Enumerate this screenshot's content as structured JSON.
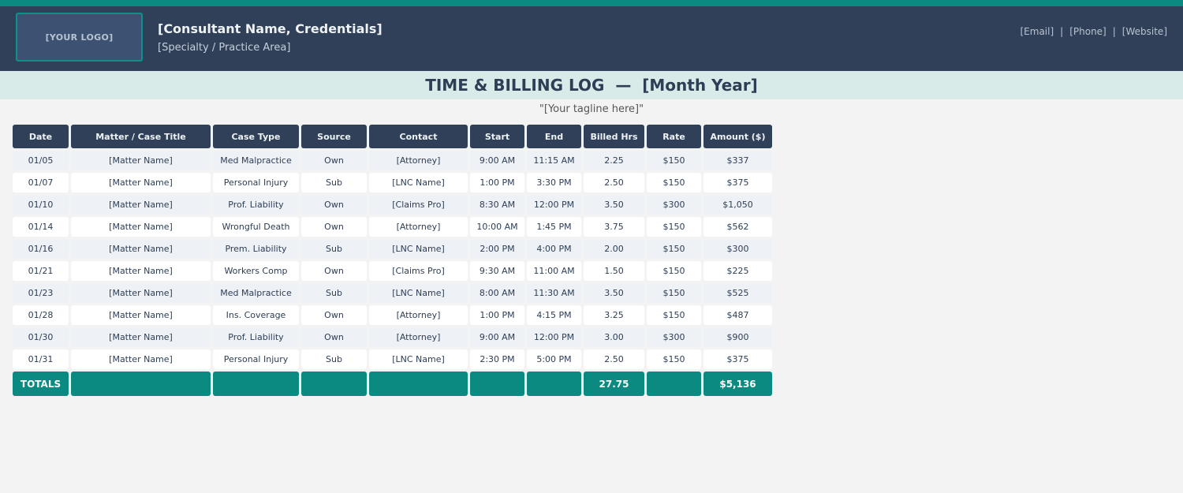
{
  "header": {
    "logo_text": "[YOUR LOGO]",
    "consultant": "[Consultant Name, Credentials]",
    "specialty": "[Specialty / Practice Area]",
    "email": "[Email]",
    "phone": "[Phone]",
    "website": "[Website]",
    "separator": "|"
  },
  "title": "TIME & BILLING LOG  —  [Month Year]",
  "tagline": "\"[Your tagline here]\"",
  "table": {
    "columns": [
      "Date",
      "Matter / Case Title",
      "Case Type",
      "Source",
      "Contact",
      "Start",
      "End",
      "Billed Hrs",
      "Rate",
      "Amount ($)"
    ],
    "rows": [
      [
        "01/05",
        "[Matter Name]",
        "Med Malpractice",
        "Own",
        "[Attorney]",
        "9:00 AM",
        "11:15 AM",
        "2.25",
        "$150",
        "$337"
      ],
      [
        "01/07",
        "[Matter Name]",
        "Personal Injury",
        "Sub",
        "[LNC Name]",
        "1:00 PM",
        "3:30 PM",
        "2.50",
        "$150",
        "$375"
      ],
      [
        "01/10",
        "[Matter Name]",
        "Prof. Liability",
        "Own",
        "[Claims Pro]",
        "8:30 AM",
        "12:00 PM",
        "3.50",
        "$300",
        "$1,050"
      ],
      [
        "01/14",
        "[Matter Name]",
        "Wrongful Death",
        "Own",
        "[Attorney]",
        "10:00 AM",
        "1:45 PM",
        "3.75",
        "$150",
        "$562"
      ],
      [
        "01/16",
        "[Matter Name]",
        "Prem. Liability",
        "Sub",
        "[LNC Name]",
        "2:00 PM",
        "4:00 PM",
        "2.00",
        "$150",
        "$300"
      ],
      [
        "01/21",
        "[Matter Name]",
        "Workers Comp",
        "Own",
        "[Claims Pro]",
        "9:30 AM",
        "11:00 AM",
        "1.50",
        "$150",
        "$225"
      ],
      [
        "01/23",
        "[Matter Name]",
        "Med Malpractice",
        "Sub",
        "[LNC Name]",
        "8:00 AM",
        "11:30 AM",
        "3.50",
        "$150",
        "$525"
      ],
      [
        "01/28",
        "[Matter Name]",
        "Ins. Coverage",
        "Own",
        "[Attorney]",
        "1:00 PM",
        "4:15 PM",
        "3.25",
        "$150",
        "$487"
      ],
      [
        "01/30",
        "[Matter Name]",
        "Prof. Liability",
        "Own",
        "[Attorney]",
        "9:00 AM",
        "12:00 PM",
        "3.00",
        "$300",
        "$900"
      ],
      [
        "01/31",
        "[Matter Name]",
        "Personal Injury",
        "Sub",
        "[LNC Name]",
        "2:30 PM",
        "5:00 PM",
        "2.50",
        "$150",
        "$375"
      ]
    ],
    "totals": {
      "label": "TOTALS",
      "billed_hrs": "27.75",
      "amount": "$5,136"
    }
  },
  "colors": {
    "accent": "#0a8a80",
    "header_bg": "#2f4058",
    "title_band": "#d8ebe8"
  }
}
